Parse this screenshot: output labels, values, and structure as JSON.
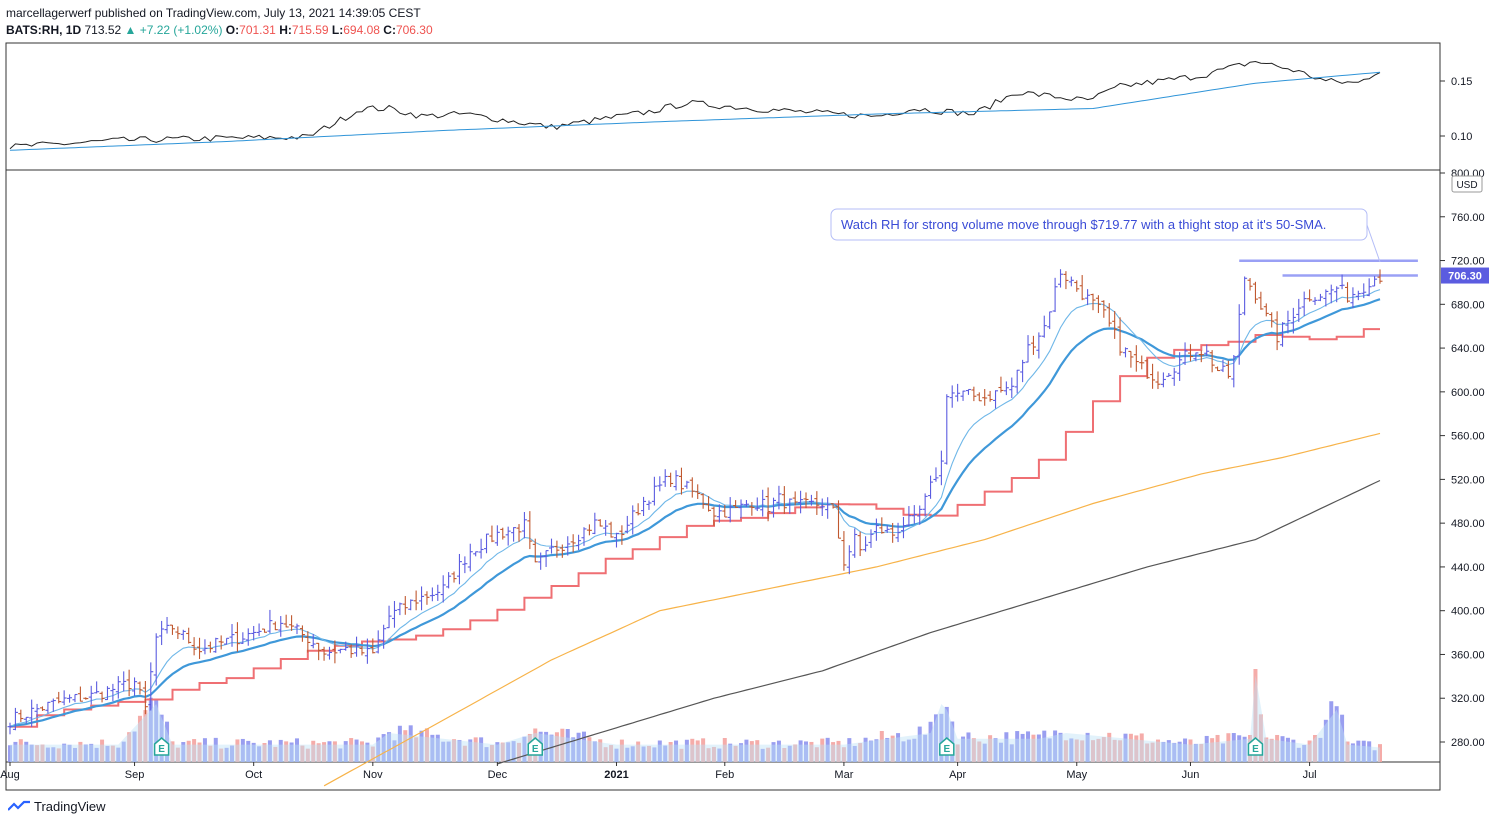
{
  "header": {
    "publisher_line": "marcellagerwerf published on TradingView.com, July 13, 2021 14:39:05 CEST",
    "symbol": "BATS:RH, 1D",
    "last": "713.52",
    "change": "▲ +7.22 (+1.02%)",
    "o_label": "O:",
    "o": "701.31",
    "h_label": "H:",
    "h": "715.59",
    "l_label": "L:",
    "l": "694.08",
    "c_label": "C:",
    "c": "706.30"
  },
  "footer": {
    "brand": "TradingView"
  },
  "colors": {
    "up": "#5b5ce0",
    "down": "#c0582f",
    "ema_fast": "#6fb7e8",
    "ema_slow": "#3f98d9",
    "step": "#ef6f73",
    "sma100": "#f7b349",
    "sma200": "#555555",
    "rs": "#222222",
    "rs_ma": "#2f94d8",
    "resistance": "#9aa0f5",
    "price_label": "#5b5ce0"
  },
  "chart_data": [
    {
      "type": "line",
      "series": [
        {
          "x": [
            0,
            20,
            40,
            55,
            65,
            70,
            76,
            84,
            100,
            118,
            125,
            140,
            152,
            160,
            167,
            178,
            186,
            199,
            205,
            220,
            230,
            237,
            243,
            249,
            253
          ],
          "values": [
            0.09,
            0.096,
            0.098,
            0.099,
            0.125,
            0.125,
            0.118,
            0.12,
            0.108,
            0.122,
            0.13,
            0.124,
            0.12,
            0.118,
            0.125,
            0.12,
            0.14,
            0.132,
            0.145,
            0.155,
            0.168,
            0.16,
            0.15,
            0.148,
            0.16
          ]
        },
        {
          "x": [
            0,
            40,
            80,
            120,
            160,
            200,
            230,
            253
          ],
          "values": [
            0.087,
            0.095,
            0.105,
            0.113,
            0.12,
            0.125,
            0.148,
            0.158
          ]
        }
      ],
      "ylim": [
        0.07,
        0.19
      ],
      "y_ticks": [
        "0.15",
        "0.10"
      ]
    },
    {
      "type": "candlestick",
      "y_unit": "USD",
      "ylim": [
        260,
        800
      ],
      "y_ticks": [
        "800.00",
        "760.00",
        "720.00",
        "680.00",
        "640.00",
        "600.00",
        "560.00",
        "520.00",
        "480.00",
        "440.00",
        "400.00",
        "360.00",
        "320.00",
        "280.00"
      ],
      "x_labels": [
        "Aug",
        "Sep",
        "Oct",
        "Nov",
        "Dec",
        "2021",
        "Feb",
        "Mar",
        "Apr",
        "May",
        "Jun",
        "Jul"
      ],
      "x_label_index": [
        0,
        23,
        45,
        67,
        90,
        112,
        132,
        154,
        175,
        197,
        218,
        240
      ],
      "close_anchors": {
        "x": [
          0,
          5,
          10,
          15,
          20,
          23,
          25,
          27,
          30,
          35,
          40,
          45,
          50,
          55,
          58,
          62,
          67,
          70,
          75,
          80,
          85,
          90,
          95,
          97,
          100,
          105,
          108,
          110,
          112,
          117,
          122,
          127,
          130,
          134,
          137,
          140,
          142,
          145,
          150,
          152,
          154,
          156,
          157,
          160,
          163,
          165,
          167,
          169,
          171,
          172,
          173,
          175,
          180,
          185,
          188,
          191,
          194,
          196,
          198,
          200,
          202,
          205,
          208,
          212,
          216,
          219,
          221,
          223,
          225,
          226,
          228,
          230,
          232,
          234,
          236,
          238,
          240,
          243,
          245,
          247,
          249,
          251,
          253
        ],
        "values": [
          300,
          310,
          318,
          322,
          330,
          335,
          310,
          375,
          385,
          365,
          372,
          380,
          390,
          375,
          362,
          365,
          360,
          395,
          410,
          420,
          455,
          470,
          478,
          440,
          455,
          470,
          480,
          475,
          466,
          500,
          522,
          505,
          490,
          492,
          500,
          495,
          502,
          495,
          498,
          490,
          445,
          465,
          455,
          475,
          470,
          480,
          482,
          500,
          525,
          535,
          600,
          598,
          595,
          605,
          640,
          660,
          710,
          700,
          690,
          680,
          670,
          642,
          625,
          612,
          628,
          640,
          635,
          620,
          615,
          630,
          705,
          690,
          668,
          650,
          665,
          680,
          688,
          690,
          695,
          688,
          692,
          702,
          706
        ]
      },
      "volume_anchors": {
        "x": [
          0,
          20,
          27,
          30,
          45,
          67,
          70,
          90,
          97,
          112,
          132,
          154,
          170,
          172,
          173,
          175,
          190,
          195,
          218,
          229,
          230,
          232,
          240,
          245,
          247,
          253
        ],
        "values": [
          0.3,
          0.3,
          1.0,
          0.3,
          0.3,
          0.3,
          0.5,
          0.3,
          0.5,
          0.3,
          0.3,
          0.3,
          0.5,
          1.0,
          0.9,
          0.4,
          0.4,
          0.5,
          0.3,
          0.4,
          1.5,
          0.4,
          0.3,
          0.9,
          0.3,
          0.25
        ]
      },
      "sma100": {
        "x": [
          58,
          80,
          100,
          120,
          140,
          160,
          180,
          200,
          220,
          235,
          253
        ],
        "values": [
          240,
          300,
          355,
          400,
          420,
          440,
          465,
          498,
          525,
          540,
          562
        ]
      },
      "sma200": {
        "x": [
          90,
          110,
          130,
          150,
          170,
          190,
          210,
          230,
          253
        ],
        "values": [
          260,
          290,
          320,
          345,
          380,
          410,
          440,
          465,
          519
        ]
      },
      "resistance_lines": [
        {
          "price": 719.77,
          "x_start": 227,
          "x_end": 260
        },
        {
          "price": 706.3,
          "x_start": 235,
          "x_end": 260
        }
      ],
      "earnings_index": [
        28,
        97,
        173,
        230
      ],
      "earnings_label": "E",
      "last_price_label": "706.30",
      "annotation": "Watch RH for strong volume move through $719.77 with a thight stop at it's 50-SMA."
    }
  ]
}
